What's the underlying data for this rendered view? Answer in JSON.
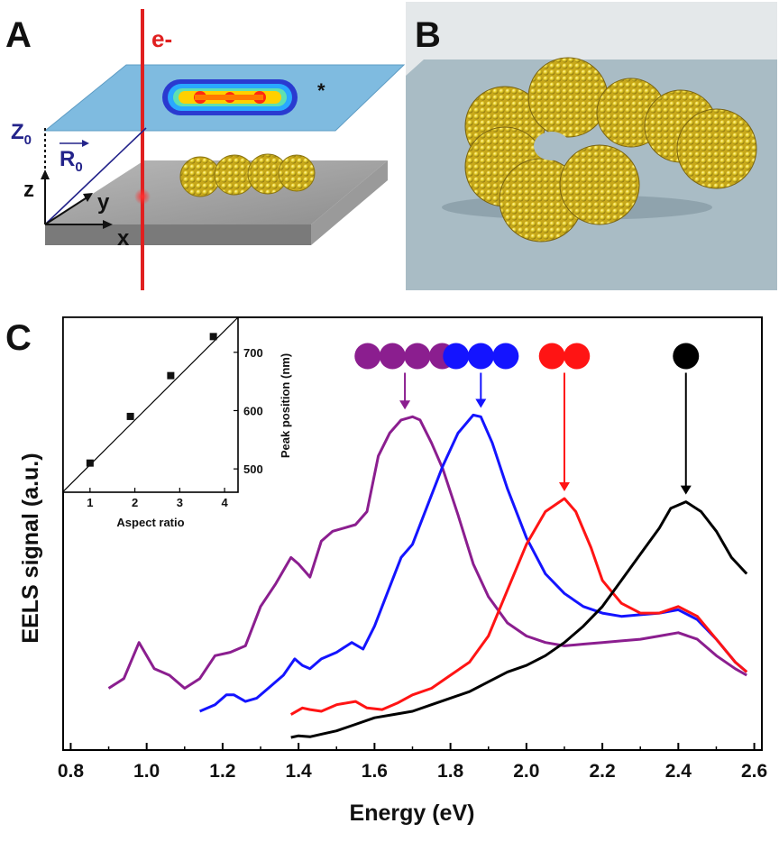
{
  "panels": {
    "a": {
      "label": "A",
      "electron": "e-",
      "star": "*",
      "z0": "Z",
      "z0_sub": "0",
      "r0": "R",
      "r0_sub": "0",
      "axis_z": "z",
      "axis_y": "y",
      "axis_x": "x"
    },
    "b": {
      "label": "B"
    },
    "c": {
      "label": "C"
    }
  },
  "colors": {
    "purple": "#8B1E8F",
    "blue": "#1414FF",
    "red": "#FF1414",
    "black": "#000000"
  },
  "chart_data": [
    {
      "type": "line",
      "xlabel": "Energy (eV)",
      "ylabel": "EELS signal (a.u.)",
      "xlim": [
        0.78,
        2.62
      ],
      "ylim": [
        0,
        1
      ],
      "x_ticks": [
        "0.8",
        "1.0",
        "1.2",
        "1.4",
        "1.6",
        "1.8",
        "2.0",
        "2.2",
        "2.4",
        "2.6"
      ],
      "x_tick_values": [
        0.8,
        1.0,
        1.2,
        1.4,
        1.6,
        1.8,
        2.0,
        2.2,
        2.4,
        2.6
      ],
      "series": [
        {
          "color": "#8B1E8F",
          "spheres": 4,
          "peak_x": 1.68,
          "x": [
            0.9,
            0.94,
            0.98,
            1.02,
            1.06,
            1.1,
            1.14,
            1.18,
            1.22,
            1.26,
            1.3,
            1.34,
            1.38,
            1.4,
            1.43,
            1.46,
            1.49,
            1.52,
            1.55,
            1.58,
            1.61,
            1.64,
            1.67,
            1.7,
            1.72,
            1.75,
            1.78,
            1.82,
            1.86,
            1.9,
            1.95,
            2.0,
            2.05,
            2.1,
            2.15,
            2.2,
            2.25,
            2.3,
            2.35,
            2.4,
            2.45,
            2.5,
            2.55,
            2.58
          ],
          "y": [
            0.15,
            0.18,
            0.29,
            0.21,
            0.19,
            0.15,
            0.18,
            0.25,
            0.26,
            0.28,
            0.4,
            0.47,
            0.55,
            0.53,
            0.49,
            0.6,
            0.63,
            0.64,
            0.65,
            0.69,
            0.86,
            0.93,
            0.97,
            0.98,
            0.97,
            0.9,
            0.82,
            0.68,
            0.53,
            0.43,
            0.35,
            0.31,
            0.29,
            0.28,
            0.285,
            0.29,
            0.295,
            0.3,
            0.31,
            0.32,
            0.3,
            0.25,
            0.21,
            0.19
          ]
        },
        {
          "color": "#1414FF",
          "spheres": 3,
          "peak_x": 1.88,
          "x": [
            1.14,
            1.18,
            1.21,
            1.23,
            1.26,
            1.29,
            1.33,
            1.36,
            1.39,
            1.41,
            1.43,
            1.46,
            1.5,
            1.54,
            1.57,
            1.6,
            1.63,
            1.67,
            1.7,
            1.74,
            1.78,
            1.82,
            1.86,
            1.88,
            1.91,
            1.95,
            2.0,
            2.05,
            2.1,
            2.15,
            2.2,
            2.25,
            2.3,
            2.35,
            2.4,
            2.45,
            2.5,
            2.55,
            2.58
          ],
          "y": [
            0.08,
            0.1,
            0.13,
            0.13,
            0.11,
            0.12,
            0.16,
            0.19,
            0.24,
            0.22,
            0.21,
            0.24,
            0.26,
            0.29,
            0.27,
            0.34,
            0.43,
            0.55,
            0.59,
            0.71,
            0.83,
            0.93,
            0.985,
            0.98,
            0.9,
            0.76,
            0.61,
            0.5,
            0.44,
            0.4,
            0.38,
            0.37,
            0.375,
            0.38,
            0.39,
            0.36,
            0.3,
            0.23,
            0.2
          ]
        },
        {
          "color": "#FF1414",
          "spheres": 2,
          "peak_x": 2.1,
          "x": [
            1.38,
            1.41,
            1.43,
            1.46,
            1.5,
            1.55,
            1.58,
            1.62,
            1.66,
            1.7,
            1.75,
            1.8,
            1.85,
            1.9,
            1.95,
            2.0,
            2.05,
            2.1,
            2.13,
            2.17,
            2.2,
            2.25,
            2.3,
            2.35,
            2.4,
            2.45,
            2.5,
            2.55,
            2.58
          ],
          "y": [
            0.07,
            0.09,
            0.085,
            0.08,
            0.1,
            0.11,
            0.09,
            0.085,
            0.105,
            0.13,
            0.15,
            0.19,
            0.23,
            0.31,
            0.45,
            0.59,
            0.69,
            0.73,
            0.69,
            0.58,
            0.48,
            0.41,
            0.38,
            0.38,
            0.4,
            0.37,
            0.3,
            0.23,
            0.2
          ]
        },
        {
          "color": "#000000",
          "spheres": 1,
          "peak_x": 2.42,
          "x": [
            1.38,
            1.4,
            1.43,
            1.46,
            1.5,
            1.55,
            1.6,
            1.65,
            1.7,
            1.75,
            1.8,
            1.85,
            1.9,
            1.95,
            2.0,
            2.05,
            2.1,
            2.15,
            2.2,
            2.25,
            2.3,
            2.35,
            2.38,
            2.42,
            2.46,
            2.5,
            2.54,
            2.58
          ],
          "y": [
            0.0,
            0.005,
            0.002,
            0.01,
            0.02,
            0.04,
            0.06,
            0.07,
            0.08,
            0.1,
            0.12,
            0.14,
            0.17,
            0.2,
            0.22,
            0.25,
            0.29,
            0.34,
            0.4,
            0.48,
            0.56,
            0.64,
            0.7,
            0.72,
            0.69,
            0.63,
            0.55,
            0.5
          ]
        }
      ]
    },
    {
      "type": "scatter",
      "xlabel": "Aspect ratio",
      "ylabel": "Peak position (nm)",
      "xlim": [
        0.4,
        4.3
      ],
      "ylim": [
        460,
        760
      ],
      "x_ticks": [
        "1",
        "2",
        "3",
        "4"
      ],
      "x_tick_values": [
        1,
        2,
        3,
        4
      ],
      "y_ticks": [
        "500",
        "600",
        "700"
      ],
      "y_tick_values": [
        500,
        600,
        700
      ],
      "points": {
        "x": [
          1.0,
          1.9,
          2.8,
          3.75
        ],
        "y": [
          510,
          590,
          660,
          727
        ]
      },
      "fit_line": {
        "x": [
          0.4,
          4.3
        ],
        "y": [
          461,
          781
        ]
      }
    }
  ]
}
